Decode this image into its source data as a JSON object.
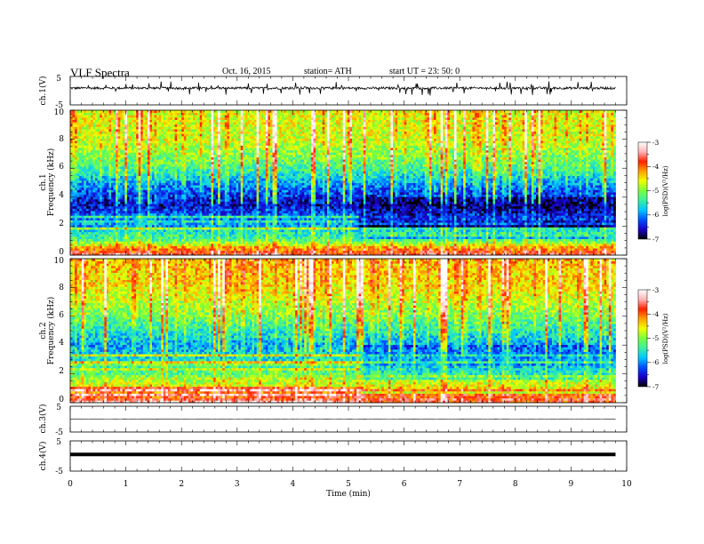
{
  "header": {
    "title": "VLF Spectra",
    "date": "Oct. 16, 2015",
    "station": "station= ATH",
    "start": "start UT = 23: 50: 0"
  },
  "colors": {
    "colormap": [
      "#000000",
      "#1a00c8",
      "#0050ff",
      "#00c8ff",
      "#3cf0a0",
      "#78ff3c",
      "#f0ff00",
      "#ffa000",
      "#ff2000",
      "#ffb4b4",
      "#ffffff"
    ],
    "trace": "#000000"
  },
  "chart_data": [
    {
      "type": "line",
      "panel": "ch1-waveform",
      "ylabel": "ch.1(V)",
      "yticks": [
        "5",
        "-5"
      ],
      "ylim": [
        -5,
        5
      ],
      "xlim": [
        0,
        10
      ],
      "baseline_v": 0.9,
      "noise_amplitude_v": 0.4,
      "spike_amplitude_v": 2.5,
      "data_end_min": 9.8
    },
    {
      "type": "heatmap",
      "panel": "ch1-spectrogram",
      "ylabel": [
        "ch.1",
        "Frequency (kHz)"
      ],
      "yticks": [
        "0",
        "2",
        "4",
        "6",
        "8",
        "10"
      ],
      "ylim": [
        0,
        10
      ],
      "xlim": [
        0,
        10
      ],
      "data_end_min": 9.8,
      "colorbar": {
        "label": "log(PSD)(V²/Hz)",
        "ticks": [
          "-3",
          "-4",
          "-5",
          "-6",
          "-7"
        ],
        "range": [
          -7,
          -3
        ]
      },
      "profile_khz": [
        0,
        0.5,
        1,
        2,
        3,
        3.5,
        4.5,
        6,
        8,
        10
      ],
      "profile_logpsd": [
        -3.6,
        -4.2,
        -5.2,
        -5.8,
        -6.3,
        -6.6,
        -6.2,
        -5.3,
        -4.7,
        -4.6
      ],
      "band_change_min": 5.2
    },
    {
      "type": "heatmap",
      "panel": "ch2-spectrogram",
      "ylabel": [
        "ch.2",
        "Frequency (kHz)"
      ],
      "yticks": [
        "0",
        "2",
        "4",
        "6",
        "8",
        "10"
      ],
      "ylim": [
        0,
        10
      ],
      "xlim": [
        0,
        10
      ],
      "data_end_min": 9.8,
      "colorbar": {
        "label": "log(PSD)(V²/Hz)",
        "ticks": [
          "-3",
          "-4",
          "-5",
          "-6",
          "-7"
        ],
        "range": [
          -7,
          -3
        ]
      },
      "profile_khz": [
        0,
        0.5,
        1,
        2,
        3,
        4,
        5,
        6,
        8,
        10
      ],
      "profile_logpsd": [
        -3.6,
        -4.0,
        -4.5,
        -5.2,
        -5.6,
        -5.9,
        -5.5,
        -5.1,
        -4.5,
        -4.3
      ],
      "band_change_min": 5.2
    },
    {
      "type": "line",
      "panel": "ch3-waveform",
      "ylabel": "ch.3(V)",
      "yticks": [
        "5",
        "-5"
      ],
      "ylim": [
        -5,
        5
      ],
      "xlim": [
        0,
        10
      ],
      "baseline_v": 0,
      "noise_amplitude_v": 0.05,
      "data_end_min": 9.8
    },
    {
      "type": "line",
      "panel": "ch4-waveform",
      "ylabel": "ch.4(V)",
      "yticks": [
        "5",
        "-5"
      ],
      "ylim": [
        -5,
        5
      ],
      "xlim": [
        0,
        10
      ],
      "baseline_v": 0.5,
      "noise_amplitude_v": 0,
      "data_end_min": 9.8,
      "xlabel": "Time (min)",
      "xticks": [
        "0",
        "1",
        "2",
        "3",
        "4",
        "5",
        "6",
        "7",
        "8",
        "9",
        "10"
      ]
    }
  ]
}
